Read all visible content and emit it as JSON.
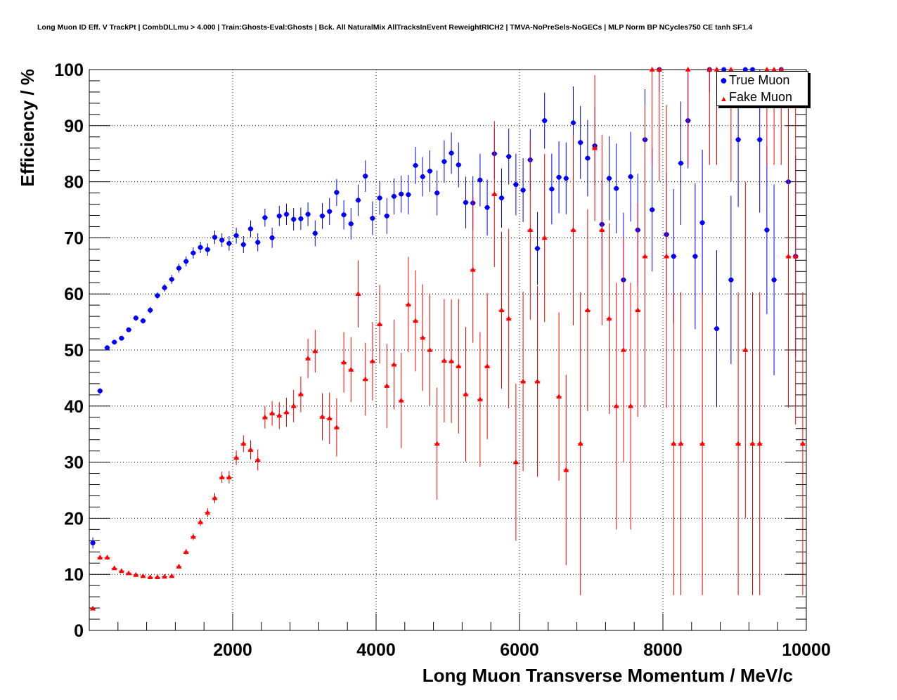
{
  "title": "Long Muon ID Eff. V TrackPt | CombDLLmu > 4.000 | Train:Ghosts-Eval:Ghosts | Bck. All NaturalMix AllTracksInEvent ReweightRICH2 | TMVA-NoPreSels-NoGECs | MLP Norm BP NCycles750 CE tanh SF1.4",
  "colors": {
    "true_muon": "#0000ff",
    "fake_muon": "#ff0000",
    "grid": "#000000"
  },
  "chart_data": {
    "type": "scatter",
    "title": "Long Muon ID Eff. V TrackPt | CombDLLmu > 4.000 | Train:Ghosts-Eval:Ghosts | Bck. All NaturalMix AllTracksInEvent ReweightRICH2 | TMVA-NoPreSels-NoGECs | MLP Norm BP NCycles750 CE tanh SF1.4",
    "xlabel": "Long Muon Transverse Momentum / MeV/c",
    "ylabel": "Efficiency / %",
    "xlim": [
      0,
      10000
    ],
    "ylim": [
      0,
      100
    ],
    "xticks": [
      2000,
      4000,
      6000,
      8000,
      10000
    ],
    "yticks": [
      0,
      10,
      20,
      30,
      40,
      50,
      60,
      70,
      80,
      90,
      100
    ],
    "grid": true,
    "legend_position": "top-right",
    "series": [
      {
        "name": "True Muon",
        "marker": "circle",
        "color": "#0000ff",
        "points": [
          [
            50,
            15.6,
            1
          ],
          [
            150,
            42.7,
            0.5
          ],
          [
            250,
            50.4,
            0.4
          ],
          [
            350,
            51.4,
            0.4
          ],
          [
            450,
            52.1,
            0.4
          ],
          [
            550,
            53.6,
            0.4
          ],
          [
            650,
            55.7,
            0.5
          ],
          [
            750,
            55.2,
            0.5
          ],
          [
            850,
            57.1,
            0.6
          ],
          [
            950,
            59.7,
            0.6
          ],
          [
            1050,
            61.1,
            0.7
          ],
          [
            1150,
            62.6,
            0.8
          ],
          [
            1250,
            64.6,
            0.8
          ],
          [
            1350,
            65.8,
            0.9
          ],
          [
            1450,
            67.3,
            1
          ],
          [
            1550,
            68.3,
            1
          ],
          [
            1650,
            67.9,
            1.1
          ],
          [
            1750,
            70.1,
            1.2
          ],
          [
            1850,
            69.6,
            1.2
          ],
          [
            1950,
            69.0,
            1.3
          ],
          [
            2050,
            70.4,
            1.4
          ],
          [
            2150,
            68.8,
            1.5
          ],
          [
            2250,
            71.6,
            1.5
          ],
          [
            2350,
            69.2,
            1.6
          ],
          [
            2450,
            73.6,
            1.6
          ],
          [
            2550,
            70.0,
            1.8
          ],
          [
            2650,
            73.9,
            1.8
          ],
          [
            2750,
            74.2,
            1.9
          ],
          [
            2850,
            73.3,
            2
          ],
          [
            2950,
            73.4,
            2
          ],
          [
            3050,
            74.2,
            2.1
          ],
          [
            3150,
            70.8,
            2.3
          ],
          [
            3250,
            73.9,
            2.3
          ],
          [
            3350,
            74.7,
            2.4
          ],
          [
            3450,
            78.1,
            2.4
          ],
          [
            3550,
            74.1,
            2.6
          ],
          [
            3650,
            72.5,
            2.8
          ],
          [
            3750,
            76.7,
            2.8
          ],
          [
            3850,
            81.0,
            2.8
          ],
          [
            3950,
            73.5,
            3
          ],
          [
            4050,
            77.1,
            3
          ],
          [
            4150,
            73.9,
            3.2
          ],
          [
            4250,
            77.4,
            3.2
          ],
          [
            4350,
            77.8,
            3.3
          ],
          [
            4450,
            77.7,
            3.5
          ],
          [
            4550,
            82.9,
            3.3
          ],
          [
            4650,
            80.9,
            3.5
          ],
          [
            4750,
            81.9,
            3.7
          ],
          [
            4850,
            78.0,
            4
          ],
          [
            4950,
            83.6,
            3.8
          ],
          [
            5050,
            85.1,
            3.7
          ],
          [
            5150,
            83.0,
            4
          ],
          [
            5250,
            76.3,
            4.6
          ],
          [
            5350,
            76.2,
            4.8
          ],
          [
            5450,
            80.3,
            4.7
          ],
          [
            5550,
            75.4,
            5
          ],
          [
            5650,
            85.0,
            4.5
          ],
          [
            5750,
            77.1,
            5.3
          ],
          [
            5850,
            84.5,
            5
          ],
          [
            5950,
            79.5,
            5.5
          ],
          [
            6050,
            78.5,
            5.7
          ],
          [
            6150,
            83.9,
            5.5
          ],
          [
            6250,
            68.1,
            6.5
          ],
          [
            6350,
            90.9,
            5
          ],
          [
            6450,
            78.7,
            6.3
          ],
          [
            6550,
            80.8,
            6.4
          ],
          [
            6650,
            80.6,
            6.4
          ],
          [
            6750,
            90.5,
            6.5
          ],
          [
            6850,
            87.0,
            6.5
          ],
          [
            6950,
            84.2,
            6.8
          ],
          [
            7050,
            86.4,
            7
          ],
          [
            7150,
            72.4,
            8
          ],
          [
            7250,
            80.6,
            7.5
          ],
          [
            7350,
            78.8,
            8
          ],
          [
            7450,
            62.5,
            12
          ],
          [
            7550,
            80.9,
            8
          ],
          [
            7650,
            71.4,
            10
          ],
          [
            7750,
            87.5,
            9
          ],
          [
            7850,
            75.0,
            11
          ],
          [
            7950,
            100,
            4
          ],
          [
            8050,
            70.6,
            11
          ],
          [
            8150,
            66.7,
            12
          ],
          [
            8250,
            83.3,
            11
          ],
          [
            8350,
            90.9,
            8.5
          ],
          [
            8450,
            66.7,
            13
          ],
          [
            8550,
            72.7,
            13
          ],
          [
            8650,
            100,
            4
          ],
          [
            8750,
            53.8,
            14
          ],
          [
            8850,
            100,
            4
          ],
          [
            8950,
            62.5,
            15
          ],
          [
            9050,
            87.5,
            12
          ],
          [
            9150,
            100,
            4
          ],
          [
            9250,
            100,
            4
          ],
          [
            9350,
            87.5,
            13
          ],
          [
            9450,
            71.4,
            15
          ],
          [
            9550,
            62.5,
            17
          ],
          [
            9650,
            100,
            4
          ],
          [
            9750,
            80.0,
            16
          ],
          [
            9850,
            66.7,
            18
          ]
        ]
      },
      {
        "name": "Fake Muon",
        "marker": "triangle",
        "color": "#ff0000",
        "points": [
          [
            50,
            3.9,
            0.3
          ],
          [
            150,
            13.0,
            0.4
          ],
          [
            250,
            13.0,
            0.4
          ],
          [
            350,
            11.1,
            0.3
          ],
          [
            450,
            10.6,
            0.3
          ],
          [
            550,
            10.2,
            0.3
          ],
          [
            650,
            9.9,
            0.3
          ],
          [
            750,
            9.7,
            0.3
          ],
          [
            850,
            9.5,
            0.3
          ],
          [
            950,
            9.5,
            0.3
          ],
          [
            1050,
            9.6,
            0.3
          ],
          [
            1150,
            9.7,
            0.3
          ],
          [
            1250,
            11.4,
            0.4
          ],
          [
            1350,
            14.0,
            0.5
          ],
          [
            1450,
            16.7,
            0.6
          ],
          [
            1550,
            19.3,
            0.7
          ],
          [
            1650,
            21.0,
            0.8
          ],
          [
            1750,
            23.6,
            0.9
          ],
          [
            1850,
            27.3,
            1
          ],
          [
            1950,
            27.3,
            1.1
          ],
          [
            2050,
            30.8,
            1.3
          ],
          [
            2150,
            33.3,
            1.5
          ],
          [
            2250,
            32.2,
            1.7
          ],
          [
            2350,
            30.4,
            1.9
          ],
          [
            2450,
            38.0,
            2
          ],
          [
            2550,
            38.7,
            2.2
          ],
          [
            2650,
            38.3,
            2.4
          ],
          [
            2750,
            38.9,
            2.6
          ],
          [
            2850,
            40.0,
            2.9
          ],
          [
            2950,
            42.1,
            3.2
          ],
          [
            3050,
            48.5,
            3.5
          ],
          [
            3150,
            49.8,
            3.8
          ],
          [
            3250,
            38.1,
            4.2
          ],
          [
            3350,
            37.8,
            4.6
          ],
          [
            3450,
            36.2,
            5.2
          ],
          [
            3550,
            47.8,
            5.4
          ],
          [
            3650,
            46.5,
            5.8
          ],
          [
            3750,
            60.0,
            6
          ],
          [
            3850,
            44.8,
            6.5
          ],
          [
            3950,
            48.0,
            7
          ],
          [
            4050,
            54.6,
            7
          ],
          [
            4150,
            43.6,
            7.5
          ],
          [
            4250,
            47.4,
            8
          ],
          [
            4350,
            41.0,
            8.5
          ],
          [
            4450,
            58.1,
            8.5
          ],
          [
            4550,
            55.2,
            9
          ],
          [
            4650,
            52.2,
            9.5
          ],
          [
            4750,
            50.0,
            10
          ],
          [
            4850,
            33.3,
            10
          ],
          [
            4950,
            48.1,
            11
          ],
          [
            5050,
            48.0,
            11
          ],
          [
            5150,
            47.1,
            12
          ],
          [
            5250,
            42.1,
            12
          ],
          [
            5350,
            64.3,
            13
          ],
          [
            5450,
            41.2,
            12
          ],
          [
            5550,
            47.1,
            13
          ],
          [
            5650,
            77.8,
            13
          ],
          [
            5750,
            57.1,
            14
          ],
          [
            5850,
            55.6,
            16
          ],
          [
            5950,
            30.0,
            14
          ],
          [
            6050,
            44.4,
            16
          ],
          [
            6150,
            71.4,
            16
          ],
          [
            6250,
            44.4,
            17
          ],
          [
            6350,
            70.0,
            15
          ],
          [
            6550,
            41.7,
            15
          ],
          [
            6650,
            28.6,
            17
          ],
          [
            6750,
            71.4,
            17
          ],
          [
            6850,
            33.3,
            27
          ],
          [
            6950,
            57.1,
            18
          ],
          [
            7050,
            86.0,
            13
          ],
          [
            7150,
            71.4,
            17
          ],
          [
            7250,
            55.6,
            17
          ],
          [
            7350,
            40.0,
            22
          ],
          [
            7450,
            50.0,
            20
          ],
          [
            7550,
            40.0,
            22
          ],
          [
            7650,
            57.1,
            19
          ],
          [
            7750,
            66.7,
            27
          ],
          [
            7850,
            100,
            17
          ],
          [
            7950,
            100,
            20
          ],
          [
            8050,
            66.7,
            27
          ],
          [
            8150,
            33.3,
            27
          ],
          [
            8250,
            33.3,
            27
          ],
          [
            8350,
            100,
            17
          ],
          [
            8550,
            33.3,
            27
          ],
          [
            8650,
            100,
            17
          ],
          [
            8750,
            100,
            17
          ],
          [
            8950,
            100,
            20
          ],
          [
            9050,
            33.3,
            27
          ],
          [
            9150,
            50.0,
            30
          ],
          [
            9250,
            33.3,
            27
          ],
          [
            9350,
            33.3,
            27
          ],
          [
            9450,
            100,
            17
          ],
          [
            9550,
            100,
            17
          ],
          [
            9650,
            100,
            17
          ],
          [
            9750,
            66.7,
            27
          ],
          [
            9850,
            66.7,
            30
          ],
          [
            9950,
            33.3,
            27
          ]
        ]
      }
    ]
  }
}
